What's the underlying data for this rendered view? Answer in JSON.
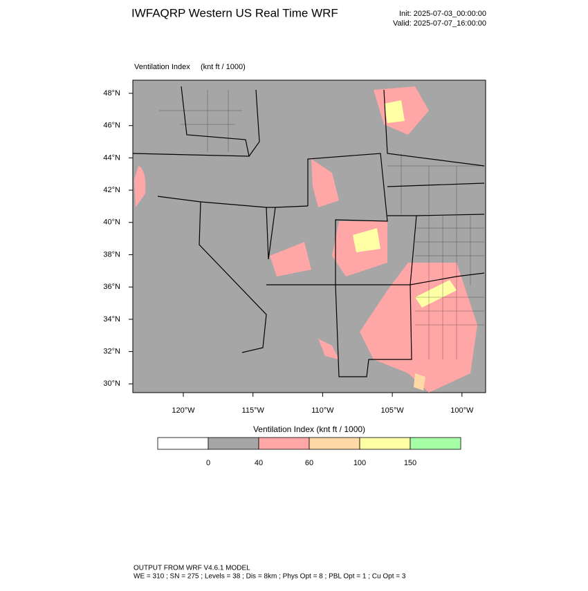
{
  "header": {
    "title": "IWFAQRP Western US Real Time WRF",
    "init": "Init: 2025-07-03_00:00:00",
    "valid": "Valid: 2025-07-07_16:00:00"
  },
  "map": {
    "title": "Ventilation Index",
    "units": "(knt ft / 1000)",
    "lat_labels": [
      "48°N",
      "46°N",
      "44°N",
      "42°N",
      "40°N",
      "38°N",
      "36°N",
      "34°N",
      "32°N",
      "30°N"
    ],
    "lon_labels": [
      "120°W",
      "115°W",
      "110°W",
      "105°W",
      "100°W"
    ]
  },
  "colorbar": {
    "title": "Ventilation Index  (knt ft / 1000)",
    "colors": [
      "#ffffff",
      "#a6a6a6",
      "#ffa6a6",
      "#ffd9a6",
      "#ffff a6",
      "#a6ffa6"
    ],
    "ticks": [
      0,
      40,
      60,
      100,
      150
    ]
  },
  "footer": {
    "line1": "OUTPUT FROM WRF V4.6.1 MODEL",
    "line2": "WE = 310 ; SN = 275 ; Levels = 38 ; Dis = 8km ; Phys Opt = 8 ; PBL Opt = 1 ; Cu Opt = 3"
  }
}
